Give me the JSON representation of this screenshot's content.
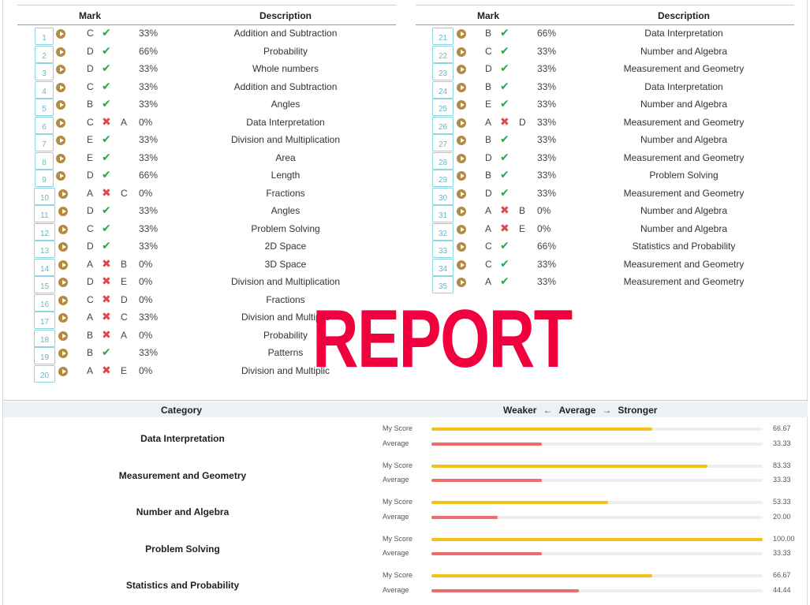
{
  "headers": {
    "mark": "Mark",
    "description": "Description"
  },
  "questions_left": [
    {
      "n": "1",
      "ans": "C",
      "ok": true,
      "corr": "",
      "pct": "33%",
      "desc": "Addition and Subtraction"
    },
    {
      "n": "2",
      "ans": "D",
      "ok": true,
      "corr": "",
      "pct": "66%",
      "desc": "Probability"
    },
    {
      "n": "3",
      "ans": "D",
      "ok": true,
      "corr": "",
      "pct": "33%",
      "desc": "Whole numbers"
    },
    {
      "n": "4",
      "ans": "C",
      "ok": true,
      "corr": "",
      "pct": "33%",
      "desc": "Addition and Subtraction"
    },
    {
      "n": "5",
      "ans": "B",
      "ok": true,
      "corr": "",
      "pct": "33%",
      "desc": "Angles"
    },
    {
      "n": "6",
      "ans": "C",
      "ok": false,
      "corr": "A",
      "pct": "0%",
      "desc": "Data Interpretation"
    },
    {
      "n": "7",
      "ans": "E",
      "ok": true,
      "corr": "",
      "pct": "33%",
      "desc": "Division and Multiplication"
    },
    {
      "n": "8",
      "ans": "E",
      "ok": true,
      "corr": "",
      "pct": "33%",
      "desc": "Area"
    },
    {
      "n": "9",
      "ans": "D",
      "ok": true,
      "corr": "",
      "pct": "66%",
      "desc": "Length"
    },
    {
      "n": "10",
      "ans": "A",
      "ok": false,
      "corr": "C",
      "pct": "0%",
      "desc": "Fractions"
    },
    {
      "n": "11",
      "ans": "D",
      "ok": true,
      "corr": "",
      "pct": "33%",
      "desc": "Angles"
    },
    {
      "n": "12",
      "ans": "C",
      "ok": true,
      "corr": "",
      "pct": "33%",
      "desc": "Problem Solving"
    },
    {
      "n": "13",
      "ans": "D",
      "ok": true,
      "corr": "",
      "pct": "33%",
      "desc": "2D Space"
    },
    {
      "n": "14",
      "ans": "A",
      "ok": false,
      "corr": "B",
      "pct": "0%",
      "desc": "3D Space"
    },
    {
      "n": "15",
      "ans": "D",
      "ok": false,
      "corr": "E",
      "pct": "0%",
      "desc": "Division and Multiplication"
    },
    {
      "n": "16",
      "ans": "C",
      "ok": false,
      "corr": "D",
      "pct": "0%",
      "desc": "Fractions"
    },
    {
      "n": "17",
      "ans": "A",
      "ok": false,
      "corr": "C",
      "pct": "33%",
      "desc": "Division and Multiplic"
    },
    {
      "n": "18",
      "ans": "B",
      "ok": false,
      "corr": "A",
      "pct": "0%",
      "desc": "Probability"
    },
    {
      "n": "19",
      "ans": "B",
      "ok": true,
      "corr": "",
      "pct": "33%",
      "desc": "Patterns"
    },
    {
      "n": "20",
      "ans": "A",
      "ok": false,
      "corr": "E",
      "pct": "0%",
      "desc": "Division and Multiplic"
    }
  ],
  "questions_right": [
    {
      "n": "21",
      "ans": "B",
      "ok": true,
      "corr": "",
      "pct": "66%",
      "desc": "Data Interpretation"
    },
    {
      "n": "22",
      "ans": "C",
      "ok": true,
      "corr": "",
      "pct": "33%",
      "desc": "Number and Algebra"
    },
    {
      "n": "23",
      "ans": "D",
      "ok": true,
      "corr": "",
      "pct": "33%",
      "desc": "Measurement and Geometry"
    },
    {
      "n": "24",
      "ans": "B",
      "ok": true,
      "corr": "",
      "pct": "33%",
      "desc": "Data Interpretation"
    },
    {
      "n": "25",
      "ans": "E",
      "ok": true,
      "corr": "",
      "pct": "33%",
      "desc": "Number and Algebra"
    },
    {
      "n": "26",
      "ans": "A",
      "ok": false,
      "corr": "D",
      "pct": "33%",
      "desc": "Measurement and Geometry"
    },
    {
      "n": "27",
      "ans": "B",
      "ok": true,
      "corr": "",
      "pct": "33%",
      "desc": "Number and Algebra"
    },
    {
      "n": "28",
      "ans": "D",
      "ok": true,
      "corr": "",
      "pct": "33%",
      "desc": "Measurement and Geometry"
    },
    {
      "n": "29",
      "ans": "B",
      "ok": true,
      "corr": "",
      "pct": "33%",
      "desc": "Problem Solving"
    },
    {
      "n": "30",
      "ans": "D",
      "ok": true,
      "corr": "",
      "pct": "33%",
      "desc": "Measurement and Geometry"
    },
    {
      "n": "31",
      "ans": "A",
      "ok": false,
      "corr": "B",
      "pct": "0%",
      "desc": "Number and Algebra"
    },
    {
      "n": "32",
      "ans": "A",
      "ok": false,
      "corr": "E",
      "pct": "0%",
      "desc": "Number and Algebra"
    },
    {
      "n": "33",
      "ans": "C",
      "ok": true,
      "corr": "",
      "pct": "66%",
      "desc": "Statistics and Probability"
    },
    {
      "n": "34",
      "ans": "C",
      "ok": true,
      "corr": "",
      "pct": "33%",
      "desc": "Measurement and Geometry"
    },
    {
      "n": "35",
      "ans": "A",
      "ok": true,
      "corr": "",
      "pct": "33%",
      "desc": "Measurement and Geometry"
    }
  ],
  "icons": {
    "play": "play-circle-icon",
    "correct": "check-icon",
    "wrong": "cross-icon"
  },
  "colors": {
    "my_score": "#f5c01a",
    "average": "#f06c6c",
    "correct": "#28a745",
    "wrong": "#e0474c",
    "watermark": "#f0003c",
    "play": "#b58a3e"
  },
  "watermark": "REPORT",
  "category_header": {
    "category": "Category",
    "weaker": "Weaker",
    "arrow_left": "←",
    "average": "Average",
    "arrow_right": "→",
    "stronger": "Stronger"
  },
  "bar_labels": {
    "my_score": "My Score",
    "average": "Average"
  },
  "categories": [
    {
      "name": "Data Interpretation",
      "my_score": "66.67",
      "average": "33.33"
    },
    {
      "name": "Measurement and Geometry",
      "my_score": "83.33",
      "average": "33.33"
    },
    {
      "name": "Number and Algebra",
      "my_score": "53.33",
      "average": "20.00"
    },
    {
      "name": "Problem Solving",
      "my_score": "100.00",
      "average": "33.33"
    },
    {
      "name": "Statistics and Probability",
      "my_score": "66.67",
      "average": "44.44"
    }
  ]
}
